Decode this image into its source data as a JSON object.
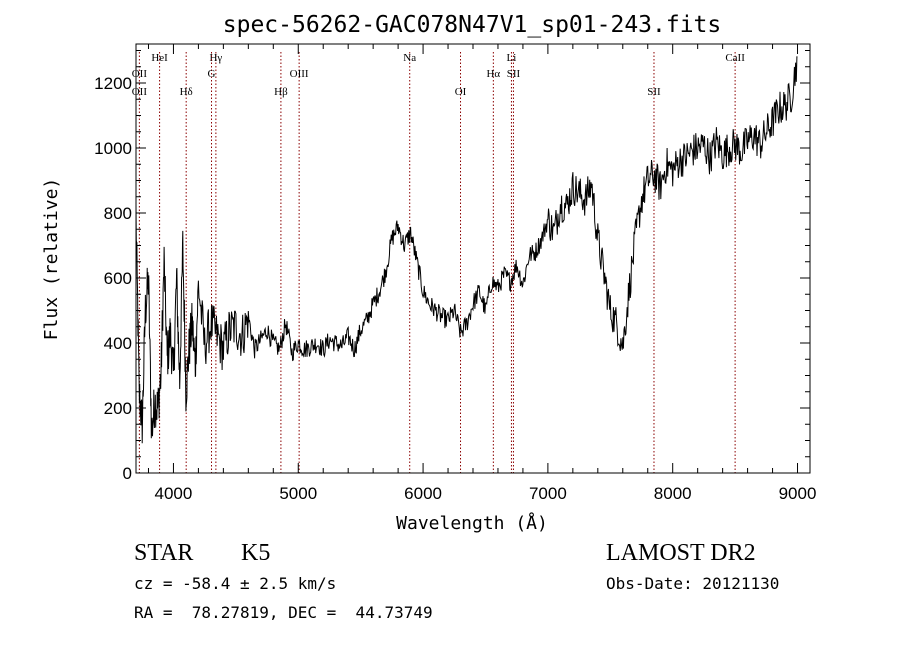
{
  "chart_data": {
    "type": "line",
    "title": "spec-56262-GAC078N47V1_sp01-243.fits",
    "xlabel": "Wavelength (Å)",
    "ylabel": "Flux (relative)",
    "xlim": [
      3700,
      9100
    ],
    "ylim": [
      0,
      1320
    ],
    "xticks": [
      4000,
      5000,
      6000,
      7000,
      8000,
      9000
    ],
    "xtick_labels": [
      "4000",
      "5000",
      "6000",
      "7000",
      "8000",
      "9000"
    ],
    "yticks": [
      0,
      200,
      400,
      600,
      800,
      1000,
      1200
    ],
    "ytick_labels": [
      "0",
      "200",
      "400",
      "600",
      "800",
      "1000",
      "1200"
    ],
    "line_color": "#000000",
    "marker_color": "#8b0000",
    "series": [
      {
        "x": [
          3700,
          3725,
          3750,
          3775,
          3800,
          3825,
          3850,
          3875,
          3900,
          3925,
          3950,
          3975,
          4000,
          4025,
          4050,
          4075,
          4100,
          4125,
          4150,
          4175,
          4200,
          4250,
          4300,
          4350,
          4400,
          4450,
          4500,
          4550,
          4600,
          4650,
          4700,
          4750,
          4800,
          4850,
          4900,
          4950,
          5000,
          5050,
          5100,
          5150,
          5200,
          5250,
          5300,
          5350,
          5400,
          5450,
          5500,
          5550,
          5600,
          5650,
          5700,
          5750,
          5800,
          5850,
          5900,
          5950,
          6000,
          6050,
          6100,
          6150,
          6200,
          6250,
          6300,
          6350,
          6400,
          6450,
          6500,
          6550,
          6600,
          6650,
          6700,
          6750,
          6800,
          6850,
          6900,
          6950,
          7000,
          7050,
          7100,
          7150,
          7200,
          7250,
          7300,
          7350,
          7400,
          7450,
          7500,
          7550,
          7600,
          7650,
          7700,
          7750,
          7800,
          7850,
          7900,
          7950,
          8000,
          8050,
          8100,
          8150,
          8200,
          8250,
          8300,
          8350,
          8400,
          8450,
          8500,
          8550,
          8600,
          8650,
          8700,
          8750,
          8800,
          8850,
          8900,
          8950,
          9000
        ],
        "y": [
          800,
          250,
          150,
          500,
          600,
          120,
          220,
          200,
          300,
          650,
          350,
          430,
          300,
          600,
          280,
          700,
          250,
          380,
          460,
          330,
          580,
          390,
          460,
          420,
          380,
          440,
          450,
          420,
          480,
          380,
          410,
          440,
          400,
          380,
          460,
          370,
          400,
          380,
          390,
          400,
          380,
          410,
          400,
          390,
          420,
          380,
          440,
          470,
          520,
          560,
          620,
          720,
          760,
          700,
          740,
          650,
          560,
          520,
          500,
          480,
          470,
          500,
          430,
          460,
          520,
          560,
          500,
          590,
          570,
          610,
          590,
          640,
          580,
          670,
          680,
          720,
          780,
          740,
          830,
          820,
          880,
          860,
          840,
          890,
          720,
          610,
          500,
          460,
          390,
          560,
          720,
          840,
          900,
          920,
          880,
          950,
          930,
          960,
          970,
          990,
          1000,
          1010,
          970,
          1020,
          980,
          1000,
          1010,
          990,
          1020,
          1040,
          1010,
          1050,
          1080,
          1120,
          1130,
          1160,
          1280
        ]
      }
    ],
    "line_markers": [
      {
        "label": "HeI",
        "x": 3889,
        "row": 1
      },
      {
        "label": "OII",
        "x": 3727,
        "row": 2
      },
      {
        "label": "OII",
        "x": 3727,
        "row": 3
      },
      {
        "label": "Hδ",
        "x": 4102,
        "row": 3
      },
      {
        "label": "Hγ",
        "x": 4340,
        "row": 1
      },
      {
        "label": "G",
        "x": 4305,
        "row": 2
      },
      {
        "label": "OIII",
        "x": 5007,
        "row": 2
      },
      {
        "label": "Hβ",
        "x": 4861,
        "row": 3
      },
      {
        "label": "Na",
        "x": 5893,
        "row": 1
      },
      {
        "label": "OI",
        "x": 6300,
        "row": 3
      },
      {
        "label": "Li",
        "x": 6708,
        "row": 1
      },
      {
        "label": "Hα",
        "x": 6563,
        "row": 2
      },
      {
        "label": "SII",
        "x": 6724,
        "row": 2
      },
      {
        "label": "SII",
        "x": 7850,
        "row": 3
      },
      {
        "label": "CaII",
        "x": 8500,
        "row": 1
      }
    ]
  },
  "info": {
    "object_class": "STAR",
    "subclass": "K5",
    "survey": "LAMOST DR2",
    "cz": "cz = -58.4 ± 2.5 km/s",
    "obs_date": "Obs-Date: 20121130",
    "coords": "RA =  78.27819, DEC =  44.73749"
  }
}
